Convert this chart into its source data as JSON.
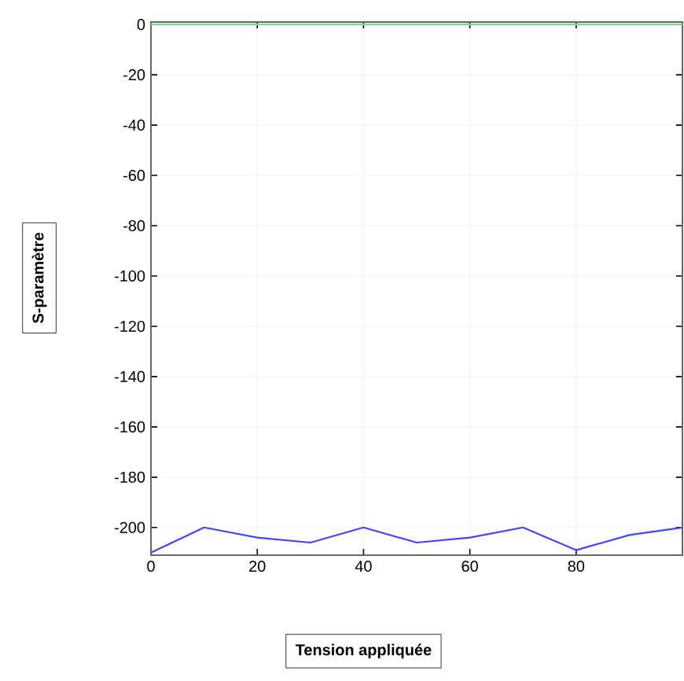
{
  "chart_data": {
    "type": "line",
    "xlabel": "Tension appliquée",
    "ylabel": "S-paramètre",
    "x": [
      0,
      10,
      20,
      30,
      40,
      50,
      60,
      70,
      80,
      90,
      100
    ],
    "series": [
      {
        "color": "#80d890",
        "values": [
          0,
          0,
          0,
          0,
          0,
          0,
          0,
          0,
          0,
          0,
          0
        ]
      },
      {
        "color": "#4444ff",
        "values": [
          -210,
          -200,
          -204,
          -206,
          -200,
          -206,
          -204,
          -200,
          -209,
          -203,
          -200
        ]
      }
    ],
    "xlim": [
      0,
      100
    ],
    "ylim": [
      -211,
      1
    ],
    "xticks": [
      0,
      20,
      40,
      60,
      80,
      {
        "value": 100,
        "label": null
      }
    ],
    "yticks": [
      0,
      -20,
      -40,
      -60,
      -80,
      -100,
      -120,
      -140,
      -160,
      -180,
      -200
    ],
    "grid": true,
    "marker": "none",
    "line_style": "solid"
  }
}
